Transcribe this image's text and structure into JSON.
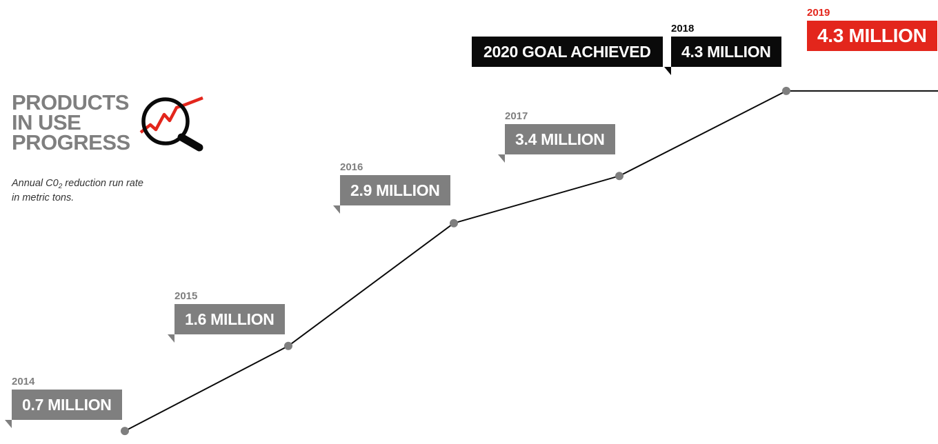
{
  "title": {
    "line1": "PRODUCTS",
    "line2": "IN USE",
    "line3": "PROGRESS"
  },
  "subtitle": {
    "before": "Annual C0",
    "sub": "2",
    "after": " reduction run rate in metric tons."
  },
  "goal_label": "2020 GOAL ACHIEVED",
  "icon": "magnifying-glass-trend-icon",
  "colors": {
    "grey": "#7f7f7f",
    "black": "#0a0a0a",
    "red": "#e3261c",
    "line": "#0a0a0a",
    "marker": "#7f7f7f"
  },
  "labels": [
    {
      "year": "2014",
      "value": "0.7 MILLION"
    },
    {
      "year": "2015",
      "value": "1.6 MILLION"
    },
    {
      "year": "2016",
      "value": "2.9 MILLION"
    },
    {
      "year": "2017",
      "value": "3.4 MILLION"
    },
    {
      "year": "2018",
      "value": "4.3 MILLION"
    },
    {
      "year": "2019",
      "value": "4.3 MILLION"
    }
  ],
  "chart_data": {
    "type": "line",
    "title": "PRODUCTS IN USE PROGRESS",
    "subtitle": "Annual C02 reduction run rate in metric tons.",
    "x": [
      "2014",
      "2015",
      "2016",
      "2017",
      "2018",
      "2019"
    ],
    "values": [
      0.7,
      1.6,
      2.9,
      3.4,
      4.3,
      4.3
    ],
    "unit": "million metric tons",
    "grid": false,
    "legend": "none"
  }
}
